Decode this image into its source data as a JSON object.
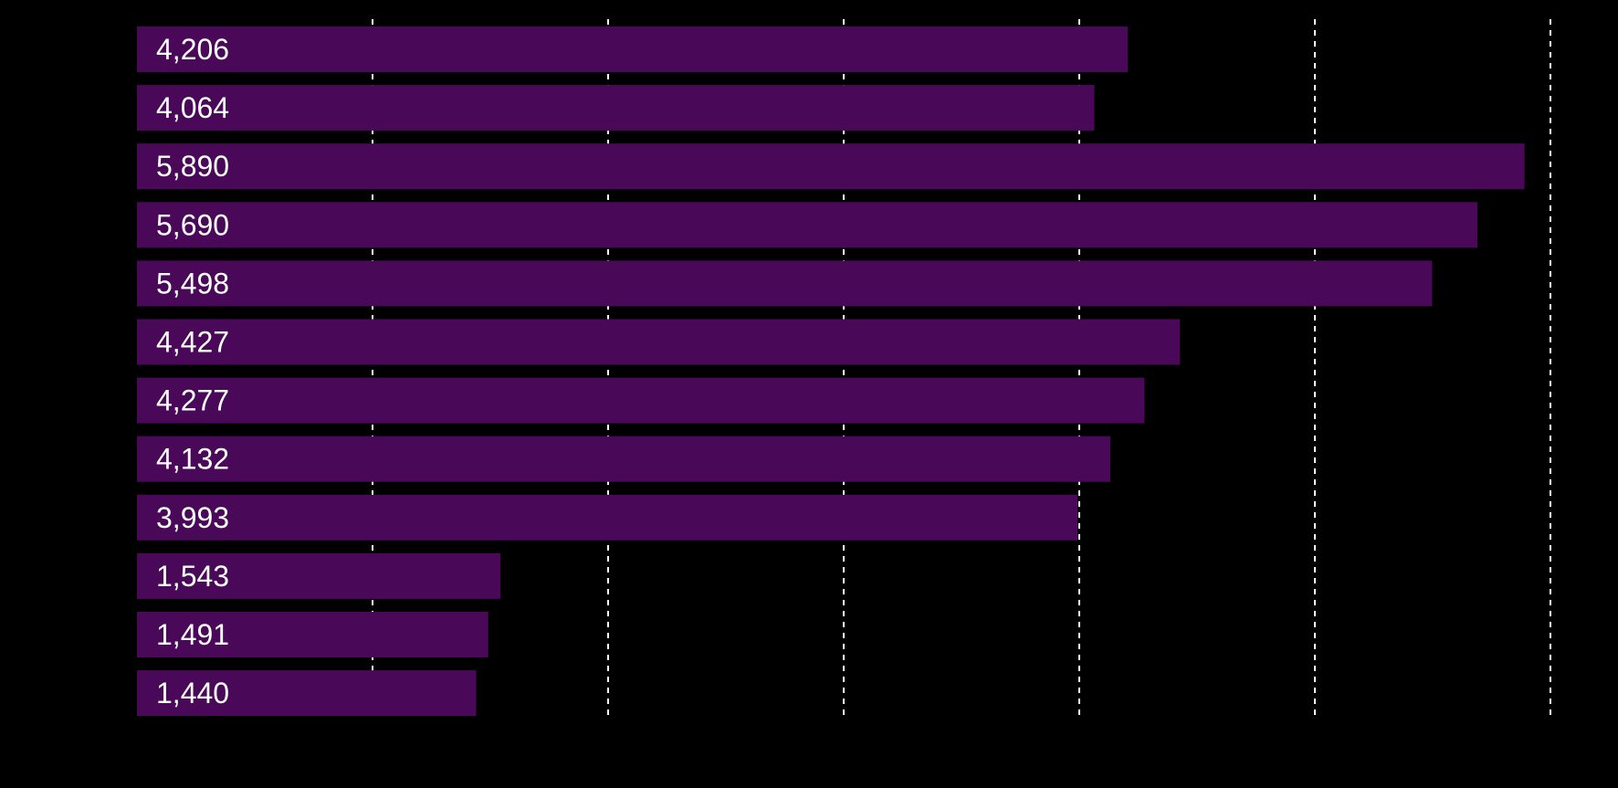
{
  "chart_data": {
    "type": "bar",
    "orientation": "horizontal",
    "values": [
      4206,
      4064,
      5890,
      5690,
      5498,
      4427,
      4277,
      4132,
      3993,
      1543,
      1491,
      1440
    ],
    "labels": [
      "4,206",
      "4,064",
      "5,890",
      "5,690",
      "5,498",
      "4,427",
      "4,277",
      "4,132",
      "3,993",
      "1,543",
      "1,491",
      "1,440"
    ],
    "xlim": [
      0,
      6000
    ],
    "grid": true,
    "grid_style": "dashed",
    "gridline_values": [
      1000,
      2000,
      3000,
      4000,
      5000,
      6000
    ],
    "bar_color": "#4a0858",
    "label_color": "#ffffff",
    "background_color": "#000000",
    "gridline_color": "#ffffff",
    "title": "",
    "xlabel": "",
    "ylabel": ""
  }
}
